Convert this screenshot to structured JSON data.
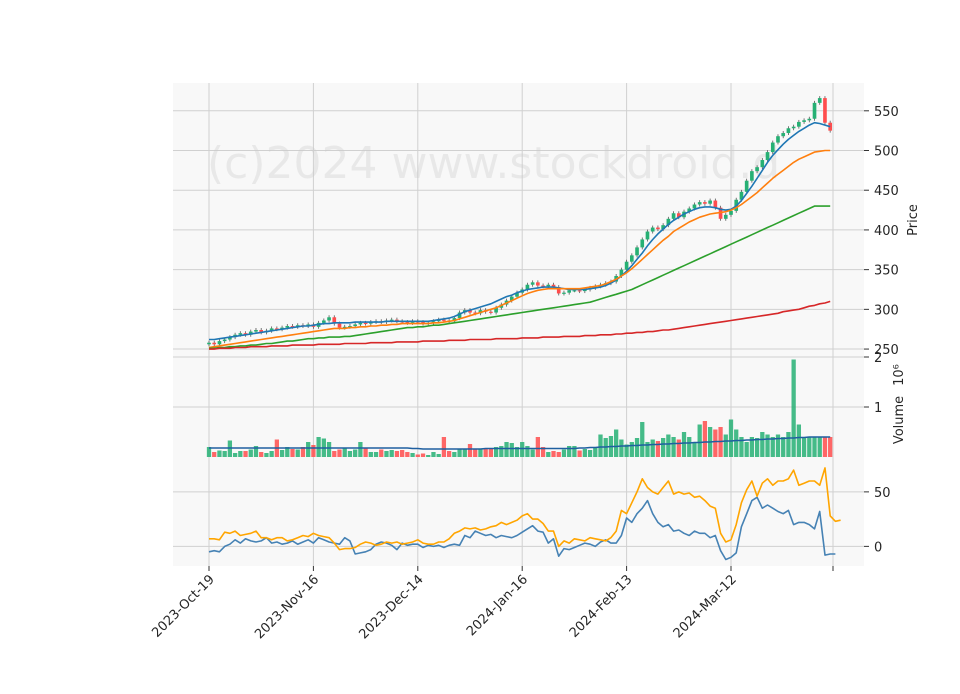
{
  "watermark": "(c)2024 www.stockdroid.d",
  "colors": {
    "panel_bg": "#f8f8f8",
    "grid": "#d0d0d0",
    "up": "#26b074",
    "down": "#ff4d4d",
    "ma_fast": "#1f77b4",
    "ma_mid": "#ff7f0e",
    "ma_slow": "#2ca02c",
    "ma_long": "#d62728",
    "vol_ma": "#1f5fa0",
    "osc_a": "#4682b4",
    "osc_b": "#ffa500"
  },
  "chart_data": [
    {
      "type": "candlestick",
      "ylabel": "Price",
      "ylim": [
        240,
        585
      ],
      "yticks": [
        250,
        300,
        350,
        400,
        450,
        500,
        550
      ],
      "grid": true,
      "x_tick_labels": [
        "2023-Oct-19",
        "2023-Nov-16",
        "2023-Dec-14",
        "2024-Jan-16",
        "2024-Feb-13",
        "2024-Mar-12"
      ],
      "x_tick_index": [
        0,
        20,
        40,
        60,
        80,
        100
      ],
      "closes": [
        258,
        256,
        260,
        262,
        265,
        268,
        270,
        268,
        272,
        274,
        271,
        273,
        276,
        275,
        277,
        279,
        278,
        280,
        279,
        281,
        278,
        283,
        286,
        290,
        282,
        277,
        278,
        279,
        281,
        283,
        282,
        284,
        285,
        284,
        286,
        287,
        285,
        284,
        283,
        285,
        284,
        282,
        283,
        285,
        287,
        286,
        285,
        289,
        296,
        299,
        296,
        295,
        299,
        297,
        296,
        302,
        306,
        311,
        316,
        321,
        325,
        331,
        334,
        330,
        329,
        331,
        328,
        320,
        321,
        324,
        324,
        323,
        325,
        327,
        329,
        331,
        333,
        335,
        342,
        350,
        360,
        368,
        378,
        388,
        398,
        403,
        401,
        406,
        414,
        421,
        416,
        423,
        427,
        432,
        435,
        433,
        437,
        428,
        414,
        419,
        424,
        438,
        448,
        462,
        474,
        479,
        488,
        498,
        510,
        518,
        522,
        528,
        530,
        536,
        538,
        540,
        560,
        566,
        535,
        525
      ],
      "series": [
        {
          "name": "",
          "values": [
            262,
            262,
            263,
            264,
            265,
            266,
            267,
            268,
            269,
            270,
            271,
            272,
            273,
            274,
            275,
            276,
            277,
            278,
            279,
            279,
            280,
            281,
            282,
            282,
            283,
            283,
            283,
            283,
            284,
            284,
            284,
            284,
            284,
            284,
            285,
            285,
            285,
            285,
            285,
            285,
            285,
            285,
            285,
            286,
            287,
            288,
            289,
            291,
            294,
            297,
            299,
            301,
            303,
            305,
            307,
            310,
            313,
            316,
            318,
            321,
            323,
            325,
            326,
            327,
            328,
            328,
            328,
            327,
            326,
            325,
            325,
            325,
            325,
            326,
            327,
            328,
            330,
            333,
            337,
            342,
            348,
            355,
            363,
            371,
            380,
            388,
            395,
            401,
            407,
            412,
            416,
            420,
            423,
            426,
            428,
            429,
            429,
            428,
            426,
            425,
            426,
            430,
            437,
            446,
            455,
            465,
            475,
            485,
            494,
            501,
            508,
            514,
            519,
            524,
            528,
            532,
            535,
            534,
            532,
            530
          ]
        },
        {
          "name": "",
          "values": [
            252,
            253,
            254,
            255,
            256,
            257,
            258,
            259,
            260,
            261,
            262,
            263,
            264,
            265,
            266,
            267,
            268,
            269,
            270,
            271,
            272,
            273,
            274,
            275,
            276,
            276,
            276,
            277,
            277,
            278,
            278,
            279,
            279,
            280,
            280,
            281,
            281,
            282,
            282,
            282,
            282,
            282,
            282,
            283,
            283,
            284,
            285,
            286,
            288,
            290,
            292,
            294,
            296,
            298,
            300,
            302,
            305,
            308,
            311,
            314,
            317,
            320,
            322,
            324,
            325,
            326,
            326,
            326,
            326,
            326,
            326,
            326,
            327,
            328,
            329,
            330,
            332,
            335,
            338,
            342,
            346,
            351,
            357,
            363,
            369,
            375,
            381,
            387,
            392,
            398,
            402,
            406,
            410,
            413,
            416,
            418,
            420,
            421,
            422,
            423,
            425,
            428,
            432,
            437,
            442,
            447,
            453,
            459,
            465,
            470,
            475,
            480,
            485,
            489,
            492,
            495,
            498,
            499,
            500,
            500
          ]
        },
        {
          "name": "",
          "values": [
            251,
            251,
            252,
            252,
            253,
            253,
            254,
            254,
            255,
            255,
            256,
            257,
            257,
            258,
            259,
            260,
            260,
            261,
            262,
            263,
            263,
            264,
            264,
            265,
            265,
            265,
            266,
            266,
            267,
            268,
            269,
            270,
            271,
            272,
            273,
            274,
            275,
            276,
            277,
            277,
            278,
            278,
            279,
            280,
            280,
            281,
            282,
            283,
            284,
            285,
            286,
            287,
            288,
            289,
            290,
            291,
            292,
            293,
            294,
            295,
            296,
            297,
            298,
            299,
            300,
            301,
            302,
            303,
            304,
            305,
            306,
            307,
            308,
            309,
            311,
            313,
            315,
            317,
            319,
            321,
            323,
            325,
            328,
            331,
            334,
            337,
            340,
            343,
            346,
            349,
            352,
            355,
            358,
            361,
            364,
            367,
            370,
            373,
            376,
            379,
            382,
            385,
            388,
            391,
            394,
            397,
            400,
            403,
            406,
            409,
            412,
            415,
            418,
            421,
            424,
            427,
            430,
            430,
            430,
            430
          ]
        },
        {
          "name": "",
          "values": [
            250,
            250,
            251,
            251,
            251,
            252,
            252,
            252,
            253,
            253,
            253,
            253,
            254,
            254,
            254,
            254,
            255,
            255,
            255,
            255,
            255,
            256,
            256,
            256,
            256,
            256,
            257,
            257,
            257,
            257,
            257,
            258,
            258,
            258,
            258,
            258,
            259,
            259,
            259,
            259,
            259,
            260,
            260,
            260,
            260,
            260,
            261,
            261,
            261,
            261,
            262,
            262,
            262,
            262,
            262,
            263,
            263,
            263,
            263,
            263,
            264,
            264,
            264,
            264,
            265,
            265,
            265,
            265,
            266,
            266,
            266,
            266,
            267,
            267,
            267,
            268,
            268,
            268,
            269,
            269,
            270,
            270,
            271,
            271,
            272,
            272,
            273,
            274,
            274,
            275,
            276,
            277,
            278,
            279,
            280,
            281,
            282,
            283,
            284,
            285,
            286,
            287,
            288,
            289,
            290,
            291,
            292,
            293,
            294,
            295,
            297,
            298,
            299,
            300,
            302,
            304,
            305,
            307,
            308,
            310
          ]
        }
      ]
    },
    {
      "type": "bar",
      "ylabel": "Volume  10^6",
      "ylabel_main": "Volume",
      "ylabel_exp": "10⁶",
      "ylim": [
        0,
        2
      ],
      "yticks": [
        1,
        2
      ],
      "values": [
        0.2,
        0.1,
        0.13,
        0.12,
        0.33,
        0.08,
        0.12,
        0.12,
        0.15,
        0.22,
        0.1,
        0.08,
        0.12,
        0.35,
        0.14,
        0.2,
        0.16,
        0.15,
        0.2,
        0.3,
        0.24,
        0.4,
        0.37,
        0.3,
        0.12,
        0.15,
        0.19,
        0.12,
        0.15,
        0.3,
        0.18,
        0.1,
        0.1,
        0.15,
        0.12,
        0.14,
        0.12,
        0.14,
        0.1,
        0.08,
        0.05,
        0.07,
        0.04,
        0.1,
        0.06,
        0.4,
        0.12,
        0.1,
        0.16,
        0.15,
        0.26,
        0.15,
        0.15,
        0.18,
        0.16,
        0.2,
        0.22,
        0.3,
        0.28,
        0.2,
        0.3,
        0.22,
        0.15,
        0.4,
        0.2,
        0.1,
        0.12,
        0.1,
        0.15,
        0.22,
        0.22,
        0.13,
        0.16,
        0.14,
        0.18,
        0.45,
        0.38,
        0.42,
        0.55,
        0.35,
        0.25,
        0.3,
        0.38,
        0.7,
        0.3,
        0.35,
        0.32,
        0.38,
        0.45,
        0.4,
        0.35,
        0.5,
        0.4,
        0.3,
        0.65,
        0.72,
        0.6,
        0.55,
        0.6,
        0.45,
        0.75,
        0.55,
        0.4,
        0.3,
        0.4,
        0.38,
        0.5,
        0.45,
        0.4,
        0.45,
        0.4,
        0.5,
        1.95,
        0.65,
        0.4,
        0.4,
        0.4,
        0.4,
        0.4,
        0.4
      ],
      "ma": [
        0.18,
        0.18,
        0.18,
        0.18,
        0.18,
        0.18,
        0.18,
        0.18,
        0.18,
        0.18,
        0.18,
        0.18,
        0.18,
        0.18,
        0.18,
        0.18,
        0.18,
        0.18,
        0.18,
        0.18,
        0.18,
        0.18,
        0.18,
        0.18,
        0.18,
        0.18,
        0.18,
        0.18,
        0.18,
        0.18,
        0.18,
        0.18,
        0.18,
        0.18,
        0.18,
        0.18,
        0.18,
        0.18,
        0.18,
        0.17,
        0.17,
        0.16,
        0.16,
        0.16,
        0.16,
        0.16,
        0.16,
        0.16,
        0.16,
        0.16,
        0.16,
        0.16,
        0.16,
        0.17,
        0.17,
        0.17,
        0.17,
        0.17,
        0.17,
        0.17,
        0.17,
        0.17,
        0.17,
        0.17,
        0.17,
        0.17,
        0.17,
        0.17,
        0.17,
        0.17,
        0.17,
        0.18,
        0.18,
        0.19,
        0.19,
        0.2,
        0.2,
        0.21,
        0.21,
        0.22,
        0.22,
        0.23,
        0.23,
        0.24,
        0.24,
        0.25,
        0.25,
        0.26,
        0.26,
        0.27,
        0.27,
        0.28,
        0.28,
        0.29,
        0.29,
        0.3,
        0.3,
        0.31,
        0.31,
        0.32,
        0.32,
        0.33,
        0.33,
        0.34,
        0.34,
        0.35,
        0.35,
        0.36,
        0.36,
        0.37,
        0.37,
        0.38,
        0.38,
        0.39,
        0.39,
        0.4,
        0.4,
        0.4,
        0.4,
        0.4
      ]
    },
    {
      "type": "line",
      "ylim": [
        -18,
        82
      ],
      "yticks": [
        0,
        50
      ],
      "grid": true,
      "series": [
        {
          "name": "",
          "values": [
            -5,
            -4,
            -5,
            0,
            2,
            6,
            3,
            7,
            5,
            4,
            5,
            8,
            3,
            4,
            2,
            3,
            5,
            2,
            4,
            6,
            3,
            8,
            6,
            4,
            3,
            2,
            8,
            5,
            -7,
            -6,
            -5,
            -3,
            2,
            4,
            3,
            1,
            -3,
            3,
            1,
            2,
            2,
            -1,
            1,
            0,
            1,
            -1,
            1,
            2,
            1,
            10,
            8,
            14,
            12,
            10,
            11,
            8,
            10,
            9,
            8,
            10,
            13,
            16,
            19,
            14,
            13,
            3,
            7,
            -9,
            -2,
            -3,
            -1,
            1,
            3,
            2,
            0,
            4,
            6,
            3,
            3,
            10,
            26,
            22,
            30,
            35,
            42,
            30,
            22,
            18,
            20,
            14,
            15,
            12,
            10,
            14,
            12,
            12,
            8,
            10,
            -4,
            -12,
            -10,
            -6,
            18,
            30,
            42,
            45,
            35,
            38,
            35,
            32,
            30,
            33,
            20,
            22,
            22,
            20,
            16,
            32,
            -8,
            -7,
            -7
          ]
        },
        {
          "name": "",
          "values": [
            7,
            7,
            6,
            13,
            12,
            14,
            10,
            11,
            12,
            14,
            8,
            8,
            6,
            8,
            8,
            5,
            6,
            8,
            10,
            9,
            12,
            10,
            9,
            8,
            3,
            -3,
            -2,
            -2,
            -1,
            2,
            4,
            3,
            1,
            2,
            4,
            3,
            4,
            2,
            3,
            4,
            6,
            3,
            2,
            2,
            4,
            4,
            7,
            12,
            14,
            17,
            16,
            17,
            15,
            16,
            18,
            19,
            22,
            20,
            22,
            24,
            28,
            30,
            25,
            25,
            21,
            14,
            14,
            0,
            5,
            3,
            7,
            6,
            5,
            8,
            7,
            6,
            5,
            8,
            14,
            33,
            30,
            40,
            50,
            62,
            54,
            50,
            48,
            54,
            60,
            48,
            50,
            48,
            49,
            45,
            46,
            42,
            37,
            35,
            12,
            4,
            6,
            20,
            40,
            52,
            60,
            46,
            58,
            62,
            56,
            60,
            60,
            62,
            70,
            56,
            58,
            60,
            60,
            56,
            72,
            28,
            23,
            24
          ]
        }
      ]
    }
  ]
}
